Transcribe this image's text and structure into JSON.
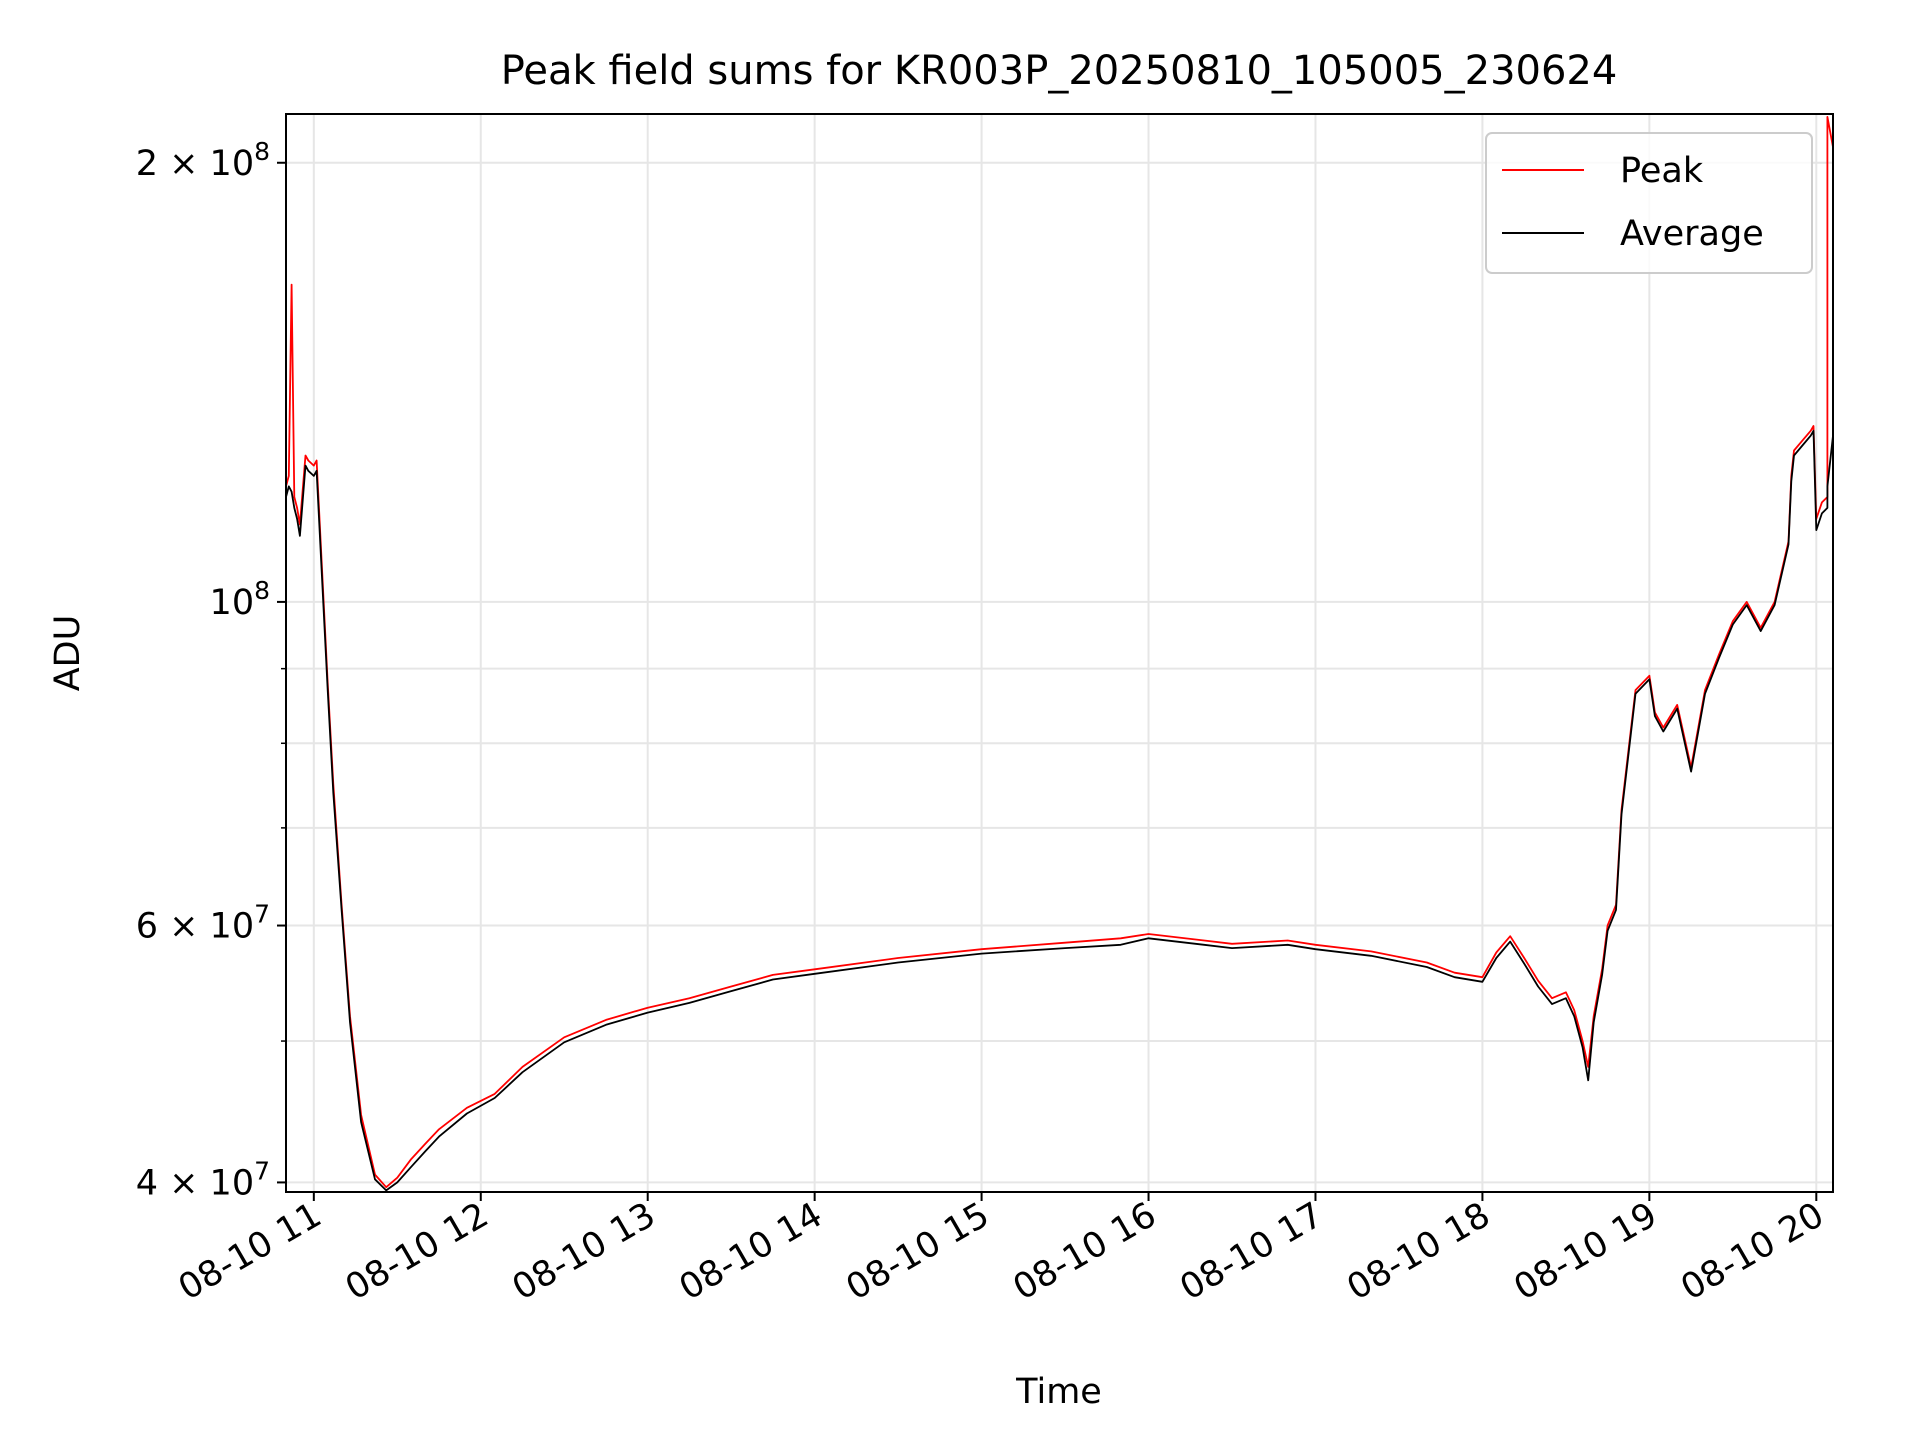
{
  "chart_data": {
    "type": "line",
    "title": "Peak field sums for KR003P_20250810_105005_230624",
    "xlabel": "Time",
    "ylabel": "ADU",
    "x_type": "datetime",
    "xlim": [
      "2025-08-10 10:50",
      "2025-08-10 20:06"
    ],
    "ylim": [
      39400000,
      216000000
    ],
    "y_scale": "log",
    "grid": true,
    "legend": "top-right",
    "x_ticks": [
      {
        "value": "2025-08-10 11:00",
        "label": "08-10 11"
      },
      {
        "value": "2025-08-10 12:00",
        "label": "08-10 12"
      },
      {
        "value": "2025-08-10 13:00",
        "label": "08-10 13"
      },
      {
        "value": "2025-08-10 14:00",
        "label": "08-10 14"
      },
      {
        "value": "2025-08-10 15:00",
        "label": "08-10 15"
      },
      {
        "value": "2025-08-10 16:00",
        "label": "08-10 16"
      },
      {
        "value": "2025-08-10 17:00",
        "label": "08-10 17"
      },
      {
        "value": "2025-08-10 18:00",
        "label": "08-10 18"
      },
      {
        "value": "2025-08-10 19:00",
        "label": "08-10 19"
      },
      {
        "value": "2025-08-10 20:00",
        "label": "08-10 20"
      }
    ],
    "y_ticks": [
      {
        "value": 40000000,
        "base": "4 × 10",
        "exp": "7"
      },
      {
        "value": 60000000,
        "base": "6 × 10",
        "exp": "7"
      },
      {
        "value": 100000000,
        "base": "10",
        "exp": "8"
      },
      {
        "value": 200000000,
        "base": "2 × 10",
        "exp": "8"
      }
    ],
    "y_minor_gridlines": [
      50000000,
      70000000,
      80000000,
      90000000
    ],
    "series": [
      {
        "name": "Peak",
        "color": "#ff0000",
        "x": [
          "2025-08-10 10:50",
          "2025-08-10 10:51",
          "2025-08-10 10:52",
          "2025-08-10 10:53",
          "2025-08-10 10:54",
          "2025-08-10 10:55",
          "2025-08-10 10:57",
          "2025-08-10 10:58",
          "2025-08-10 11:00",
          "2025-08-10 11:01",
          "2025-08-10 11:05",
          "2025-08-10 11:07",
          "2025-08-10 11:10",
          "2025-08-10 11:13",
          "2025-08-10 11:17",
          "2025-08-10 11:22",
          "2025-08-10 11:26",
          "2025-08-10 11:30",
          "2025-08-10 11:35",
          "2025-08-10 11:40",
          "2025-08-10 11:45",
          "2025-08-10 11:55",
          "2025-08-10 12:05",
          "2025-08-10 12:15",
          "2025-08-10 12:30",
          "2025-08-10 12:45",
          "2025-08-10 13:00",
          "2025-08-10 13:15",
          "2025-08-10 13:30",
          "2025-08-10 13:45",
          "2025-08-10 14:00",
          "2025-08-10 14:30",
          "2025-08-10 15:00",
          "2025-08-10 15:30",
          "2025-08-10 15:50",
          "2025-08-10 16:00",
          "2025-08-10 16:20",
          "2025-08-10 16:30",
          "2025-08-10 16:50",
          "2025-08-10 17:00",
          "2025-08-10 17:20",
          "2025-08-10 17:40",
          "2025-08-10 17:50",
          "2025-08-10 18:00",
          "2025-08-10 18:05",
          "2025-08-10 18:10",
          "2025-08-10 18:15",
          "2025-08-10 18:20",
          "2025-08-10 18:25",
          "2025-08-10 18:30",
          "2025-08-10 18:33",
          "2025-08-10 18:36",
          "2025-08-10 18:38",
          "2025-08-10 18:40",
          "2025-08-10 18:43",
          "2025-08-10 18:45",
          "2025-08-10 18:48",
          "2025-08-10 18:50",
          "2025-08-10 18:55",
          "2025-08-10 19:00",
          "2025-08-10 19:02",
          "2025-08-10 19:05",
          "2025-08-10 19:10",
          "2025-08-10 19:15",
          "2025-08-10 19:20",
          "2025-08-10 19:25",
          "2025-08-10 19:30",
          "2025-08-10 19:35",
          "2025-08-10 19:40",
          "2025-08-10 19:45",
          "2025-08-10 19:50",
          "2025-08-10 19:51",
          "2025-08-10 19:52",
          "2025-08-10 19:55",
          "2025-08-10 19:58",
          "2025-08-10 19:59",
          "2025-08-10 20:00",
          "2025-08-10 20:02",
          "2025-08-10 20:04",
          "2025-08-10 20:04",
          "2025-08-10 20:06"
        ],
        "values": [
          120000000,
          122000000,
          165000000,
          118000000,
          116000000,
          113000000,
          126000000,
          125000000,
          124000000,
          125000000,
          88000000,
          75000000,
          62000000,
          52000000,
          44500000,
          40500000,
          39700000,
          40300000,
          41500000,
          42500000,
          43500000,
          45000000,
          46000000,
          48000000,
          50300000,
          51700000,
          52700000,
          53500000,
          54500000,
          55500000,
          56000000,
          57000000,
          57800000,
          58400000,
          58800000,
          59200000,
          58600000,
          58300000,
          58600000,
          58200000,
          57600000,
          56600000,
          55700000,
          55300000,
          57500000,
          59000000,
          57000000,
          55000000,
          53500000,
          54000000,
          52500000,
          50000000,
          48000000,
          52000000,
          56000000,
          60000000,
          62000000,
          72000000,
          87000000,
          89000000,
          84000000,
          82000000,
          85000000,
          77000000,
          87000000,
          92000000,
          97000000,
          100000000,
          96000000,
          100000000,
          110000000,
          122000000,
          127000000,
          129000000,
          131000000,
          132000000,
          114000000,
          117000000,
          118000000,
          215000000,
          205000000
        ]
      },
      {
        "name": "Average",
        "color": "#000000",
        "x": [
          "2025-08-10 10:50",
          "2025-08-10 10:51",
          "2025-08-10 10:52",
          "2025-08-10 10:53",
          "2025-08-10 10:54",
          "2025-08-10 10:55",
          "2025-08-10 10:57",
          "2025-08-10 10:58",
          "2025-08-10 11:00",
          "2025-08-10 11:01",
          "2025-08-10 11:05",
          "2025-08-10 11:07",
          "2025-08-10 11:10",
          "2025-08-10 11:13",
          "2025-08-10 11:17",
          "2025-08-10 11:22",
          "2025-08-10 11:26",
          "2025-08-10 11:30",
          "2025-08-10 11:35",
          "2025-08-10 11:40",
          "2025-08-10 11:45",
          "2025-08-10 11:55",
          "2025-08-10 12:05",
          "2025-08-10 12:15",
          "2025-08-10 12:30",
          "2025-08-10 12:45",
          "2025-08-10 13:00",
          "2025-08-10 13:15",
          "2025-08-10 13:30",
          "2025-08-10 13:45",
          "2025-08-10 14:00",
          "2025-08-10 14:30",
          "2025-08-10 15:00",
          "2025-08-10 15:30",
          "2025-08-10 15:50",
          "2025-08-10 16:00",
          "2025-08-10 16:20",
          "2025-08-10 16:30",
          "2025-08-10 16:50",
          "2025-08-10 17:00",
          "2025-08-10 17:20",
          "2025-08-10 17:40",
          "2025-08-10 17:50",
          "2025-08-10 18:00",
          "2025-08-10 18:05",
          "2025-08-10 18:10",
          "2025-08-10 18:15",
          "2025-08-10 18:20",
          "2025-08-10 18:25",
          "2025-08-10 18:30",
          "2025-08-10 18:33",
          "2025-08-10 18:36",
          "2025-08-10 18:38",
          "2025-08-10 18:40",
          "2025-08-10 18:43",
          "2025-08-10 18:45",
          "2025-08-10 18:48",
          "2025-08-10 18:50",
          "2025-08-10 18:55",
          "2025-08-10 19:00",
          "2025-08-10 19:02",
          "2025-08-10 19:05",
          "2025-08-10 19:10",
          "2025-08-10 19:15",
          "2025-08-10 19:20",
          "2025-08-10 19:25",
          "2025-08-10 19:30",
          "2025-08-10 19:35",
          "2025-08-10 19:40",
          "2025-08-10 19:45",
          "2025-08-10 19:50",
          "2025-08-10 19:51",
          "2025-08-10 19:52",
          "2025-08-10 19:55",
          "2025-08-10 19:58",
          "2025-08-10 19:59",
          "2025-08-10 20:00",
          "2025-08-10 20:02",
          "2025-08-10 20:04",
          "2025-08-10 20:04",
          "2025-08-10 20:06"
        ],
        "values": [
          118000000,
          120000000,
          119000000,
          116000000,
          114000000,
          111000000,
          124000000,
          123000000,
          122000000,
          123000000,
          87000000,
          74000000,
          61500000,
          51500000,
          44000000,
          40200000,
          39500000,
          40000000,
          41000000,
          42000000,
          43000000,
          44600000,
          45700000,
          47600000,
          49900000,
          51300000,
          52300000,
          53100000,
          54100000,
          55100000,
          55600000,
          56600000,
          57400000,
          57900000,
          58200000,
          58800000,
          58200000,
          57900000,
          58200000,
          57800000,
          57200000,
          56200000,
          55300000,
          54900000,
          57000000,
          58500000,
          56500000,
          54500000,
          53000000,
          53500000,
          52000000,
          49500000,
          47000000,
          51500000,
          55500000,
          59500000,
          61500000,
          71500000,
          86500000,
          88500000,
          83500000,
          81500000,
          84500000,
          76500000,
          86500000,
          91500000,
          96500000,
          99500000,
          95500000,
          99500000,
          109500000,
          121000000,
          126000000,
          128000000,
          130000000,
          131000000,
          112000000,
          115000000,
          116000000,
          120000000,
          130000000
        ]
      }
    ]
  }
}
